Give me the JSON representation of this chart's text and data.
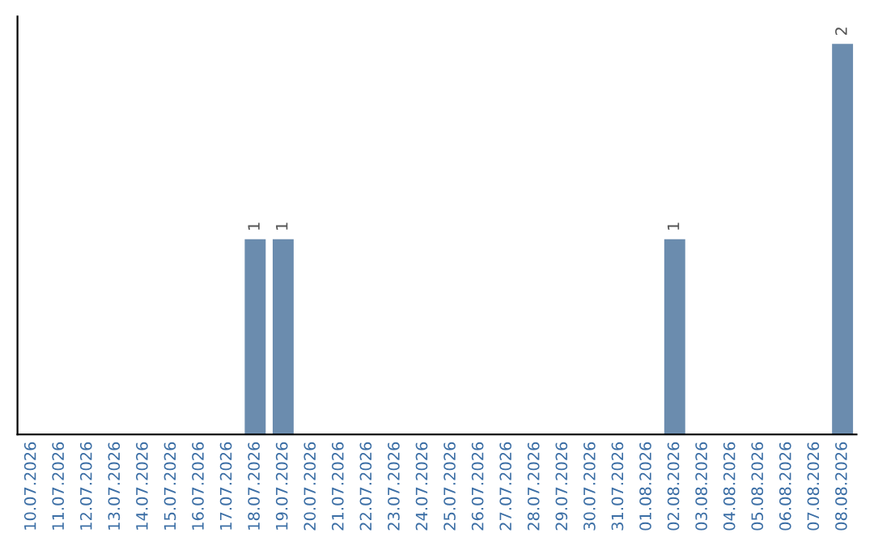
{
  "chart_data": {
    "type": "bar",
    "categories": [
      "10.07.2026",
      "11.07.2026",
      "12.07.2026",
      "13.07.2026",
      "14.07.2026",
      "15.07.2026",
      "16.07.2026",
      "17.07.2026",
      "18.07.2026",
      "19.07.2026",
      "20.07.2026",
      "21.07.2026",
      "22.07.2026",
      "23.07.2026",
      "24.07.2026",
      "25.07.2026",
      "26.07.2026",
      "27.07.2026",
      "28.07.2026",
      "29.07.2026",
      "30.07.2026",
      "31.07.2026",
      "01.08.2026",
      "02.08.2026",
      "03.08.2026",
      "04.08.2026",
      "05.08.2026",
      "06.08.2026",
      "07.08.2026",
      "08.08.2026"
    ],
    "values": [
      0,
      0,
      0,
      0,
      0,
      0,
      0,
      0,
      1,
      1,
      0,
      0,
      0,
      0,
      0,
      0,
      0,
      0,
      0,
      0,
      0,
      0,
      0,
      1,
      0,
      0,
      0,
      0,
      0,
      2
    ],
    "value_labels": [
      null,
      null,
      null,
      null,
      null,
      null,
      null,
      null,
      "1",
      "1",
      null,
      null,
      null,
      null,
      null,
      null,
      null,
      null,
      null,
      null,
      null,
      null,
      null,
      "1",
      null,
      null,
      null,
      null,
      null,
      "2"
    ],
    "color": "#6b8cae",
    "grid": false,
    "tick_labels": "x"
  }
}
